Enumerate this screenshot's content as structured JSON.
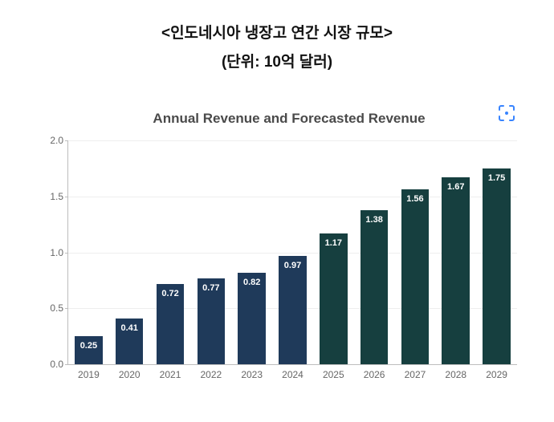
{
  "heading": {
    "line1": "<인도네시아 냉장고 연간 시장 규모>",
    "line2": "(단위: 10억 달러)",
    "color": "#111111",
    "fontsize": 19
  },
  "chart": {
    "type": "bar",
    "title": "Annual Revenue and Forecasted Revenue",
    "title_fontsize": 17,
    "title_color": "#4a4a4a",
    "background_color": "#ffffff",
    "grid_color": "#eeeeee",
    "axis_color": "#bdbdbd",
    "tick_label_color": "#666666",
    "tick_label_fontsize": 12,
    "bar_label_color": "#ffffff",
    "bar_label_fontsize": 11,
    "ylim": [
      0.0,
      2.0
    ],
    "ytick_step": 0.5,
    "yticks": [
      "0.0",
      "0.5",
      "1.0",
      "1.5",
      "2.0"
    ],
    "bar_width_ratio": 0.68,
    "categories": [
      "2019",
      "2020",
      "2021",
      "2022",
      "2023",
      "2024",
      "2025",
      "2026",
      "2027",
      "2028",
      "2029"
    ],
    "values": [
      0.25,
      0.41,
      0.72,
      0.77,
      0.82,
      0.97,
      1.17,
      1.38,
      1.56,
      1.67,
      1.75
    ],
    "bar_colors": [
      "#1f3a5a",
      "#1f3a5a",
      "#1f3a5a",
      "#1f3a5a",
      "#1f3a5a",
      "#1f3a5a",
      "#163f3f",
      "#163f3f",
      "#163f3f",
      "#163f3f",
      "#163f3f"
    ]
  },
  "expand_icon": {
    "stroke": "#3884ff",
    "dot": "#3884ff"
  }
}
